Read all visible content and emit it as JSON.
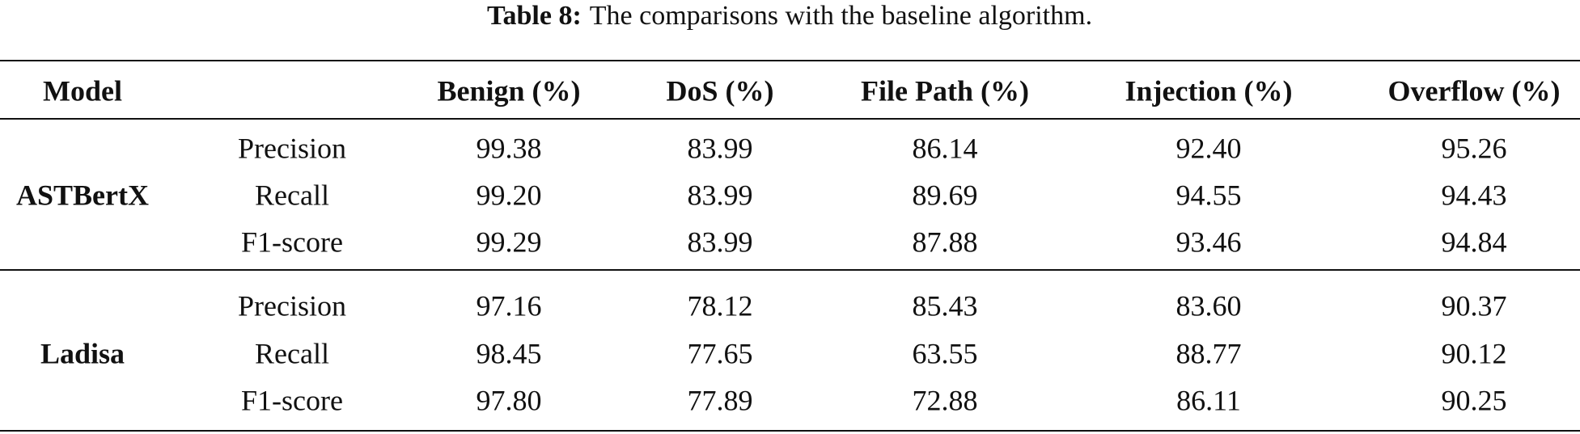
{
  "caption": {
    "label": "Table 8:",
    "text": "The comparisons with the baseline algorithm."
  },
  "table": {
    "model_header": "Model",
    "column_headers": [
      "Benign (%)",
      "DoS (%)",
      "File Path (%)",
      "Injection (%)",
      "Overflow (%)"
    ],
    "groups": [
      {
        "model": "ASTBertX",
        "rows": [
          {
            "metric": "Precision",
            "values": [
              "99.38",
              "83.99",
              "86.14",
              "92.40",
              "95.26"
            ]
          },
          {
            "metric": "Recall",
            "values": [
              "99.20",
              "83.99",
              "89.69",
              "94.55",
              "94.43"
            ]
          },
          {
            "metric": "F1-score",
            "values": [
              "99.29",
              "83.99",
              "87.88",
              "93.46",
              "94.84"
            ]
          }
        ]
      },
      {
        "model": "Ladisa",
        "rows": [
          {
            "metric": "Precision",
            "values": [
              "97.16",
              "78.12",
              "85.43",
              "83.60",
              "90.37"
            ]
          },
          {
            "metric": "Recall",
            "values": [
              "98.45",
              "77.65",
              "63.55",
              "88.77",
              "90.12"
            ]
          },
          {
            "metric": "F1-score",
            "values": [
              "97.80",
              "77.89",
              "72.88",
              "86.11",
              "90.25"
            ]
          }
        ]
      }
    ]
  }
}
